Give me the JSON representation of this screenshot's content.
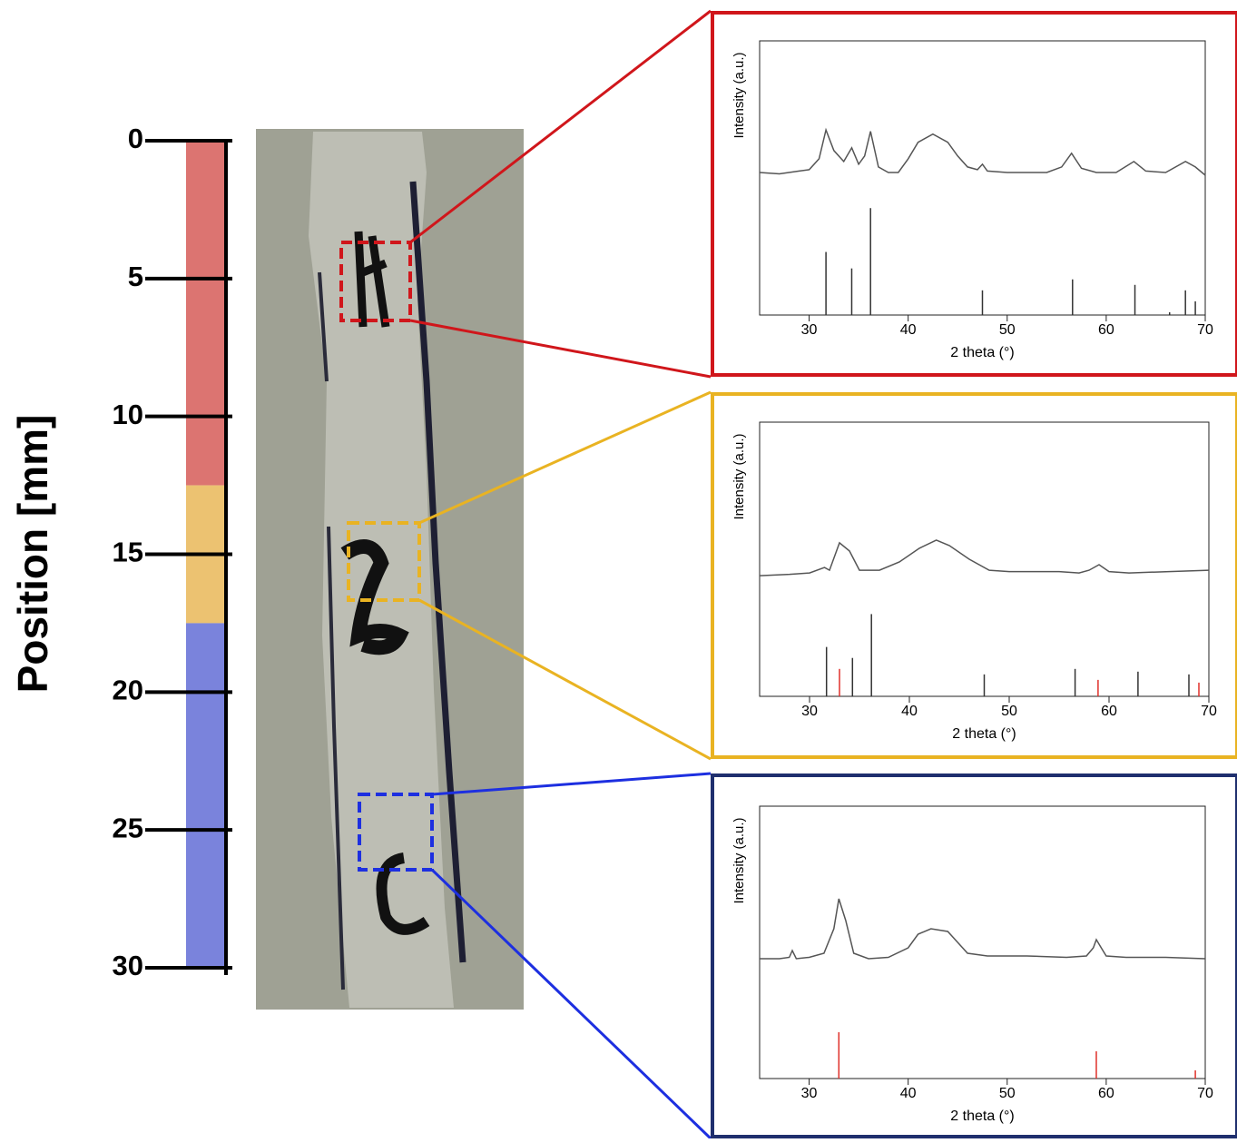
{
  "chart_data": [
    {
      "type": "stacked-bar",
      "ylabel": "Position [mm]",
      "ylim": [
        0,
        30
      ],
      "yticks": [
        0,
        5,
        10,
        15,
        20,
        25,
        30
      ],
      "values": [
        12.5,
        5,
        12.5
      ],
      "colors": [
        "#dc7471",
        "#ecc271",
        "#7a83dc"
      ],
      "inverted": true
    },
    {
      "type": "line",
      "xlabel": "2 theta (°)",
      "ylabel": "Intensity (a.u.)",
      "xlim": [
        25,
        70
      ],
      "xticks": [
        30,
        40,
        50,
        60,
        70
      ],
      "ylim": [
        0,
        100
      ],
      "frame_color": "#d0161b",
      "color": "#555555",
      "x": [
        25,
        27,
        29,
        30,
        31,
        31.7,
        32.5,
        33.5,
        34.3,
        35,
        35.6,
        36.2,
        37,
        38,
        39,
        40,
        41,
        42.5,
        44,
        45,
        46,
        47,
        47.5,
        48,
        50,
        52,
        54,
        55.5,
        56.5,
        57.5,
        59,
        61,
        62.8,
        64,
        66,
        68,
        69,
        70
      ],
      "values": [
        52,
        51.5,
        52.5,
        53,
        57,
        67.5,
        60,
        56,
        61,
        55,
        58,
        67,
        54,
        52,
        52,
        57,
        63,
        66,
        63,
        58,
        54,
        53,
        55,
        52.5,
        52,
        52,
        52,
        54,
        59,
        53.5,
        52,
        52,
        56,
        52.5,
        52,
        56,
        54,
        51
      ],
      "sticks": {
        "x": [
          31.7,
          34.3,
          36.2,
          47.5,
          56.6,
          62.9,
          66.4,
          68,
          69
        ],
        "values": [
          23,
          17,
          39,
          9,
          13,
          11,
          1,
          9,
          5
        ],
        "colors": [
          "#333333",
          "#333333",
          "#333333",
          "#333333",
          "#333333",
          "#333333",
          "#333333",
          "#333333",
          "#333333"
        ]
      }
    },
    {
      "type": "line",
      "xlabel": "2 theta (°)",
      "ylabel": "Intensity (a.u.)",
      "xlim": [
        25,
        70
      ],
      "xticks": [
        30,
        40,
        50,
        60,
        70
      ],
      "ylim": [
        0,
        100
      ],
      "frame_color": "#e9b322",
      "color": "#555555",
      "x": [
        25,
        28,
        30,
        31.5,
        32,
        33,
        34,
        35,
        37,
        39,
        41,
        42.7,
        44,
        46,
        48,
        50,
        55,
        57,
        58,
        59,
        60,
        62,
        66,
        70
      ],
      "values": [
        44,
        44.5,
        45,
        47,
        46,
        56,
        53,
        46,
        46,
        49,
        54,
        57,
        55,
        50,
        46,
        45.5,
        45.5,
        45,
        46,
        48,
        45.5,
        45,
        45.5,
        46
      ],
      "sticks": {
        "x": [
          31.7,
          33,
          34.3,
          36.2,
          47.5,
          56.6,
          58.9,
          62.9,
          68,
          69
        ],
        "values": [
          18,
          10,
          14,
          30,
          8,
          10,
          6,
          9,
          8,
          5
        ],
        "colors": [
          "#333333",
          "#e0302a",
          "#333333",
          "#333333",
          "#333333",
          "#333333",
          "#e0302a",
          "#333333",
          "#333333",
          "#e0302a"
        ]
      }
    },
    {
      "type": "line",
      "xlabel": "2 theta (°)",
      "ylabel": "Intensity (a.u.)",
      "xlim": [
        25,
        70
      ],
      "xticks": [
        30,
        40,
        50,
        60,
        70
      ],
      "ylim": [
        0,
        100
      ],
      "frame_color": "#1f2f6e",
      "color": "#555555",
      "x": [
        25,
        27,
        28,
        28.3,
        28.7,
        30,
        31.5,
        32.5,
        33,
        33.7,
        34.5,
        36,
        38,
        40,
        41,
        42.3,
        44,
        45,
        46,
        48,
        52,
        56,
        58,
        58.7,
        59,
        59.5,
        60,
        62,
        66,
        70
      ],
      "values": [
        44,
        44,
        44.5,
        47,
        44,
        44.5,
        46,
        55,
        66,
        58,
        46,
        44,
        44.5,
        48,
        53,
        55,
        54,
        50,
        46,
        45,
        45,
        44.5,
        45,
        48,
        51,
        48,
        45,
        44.5,
        44.5,
        44
      ],
      "sticks": {
        "x": [
          33,
          59,
          69
        ],
        "values": [
          17,
          10,
          3
        ],
        "colors": [
          "#e0302a",
          "#e0302a",
          "#e0302a"
        ]
      }
    }
  ]
}
